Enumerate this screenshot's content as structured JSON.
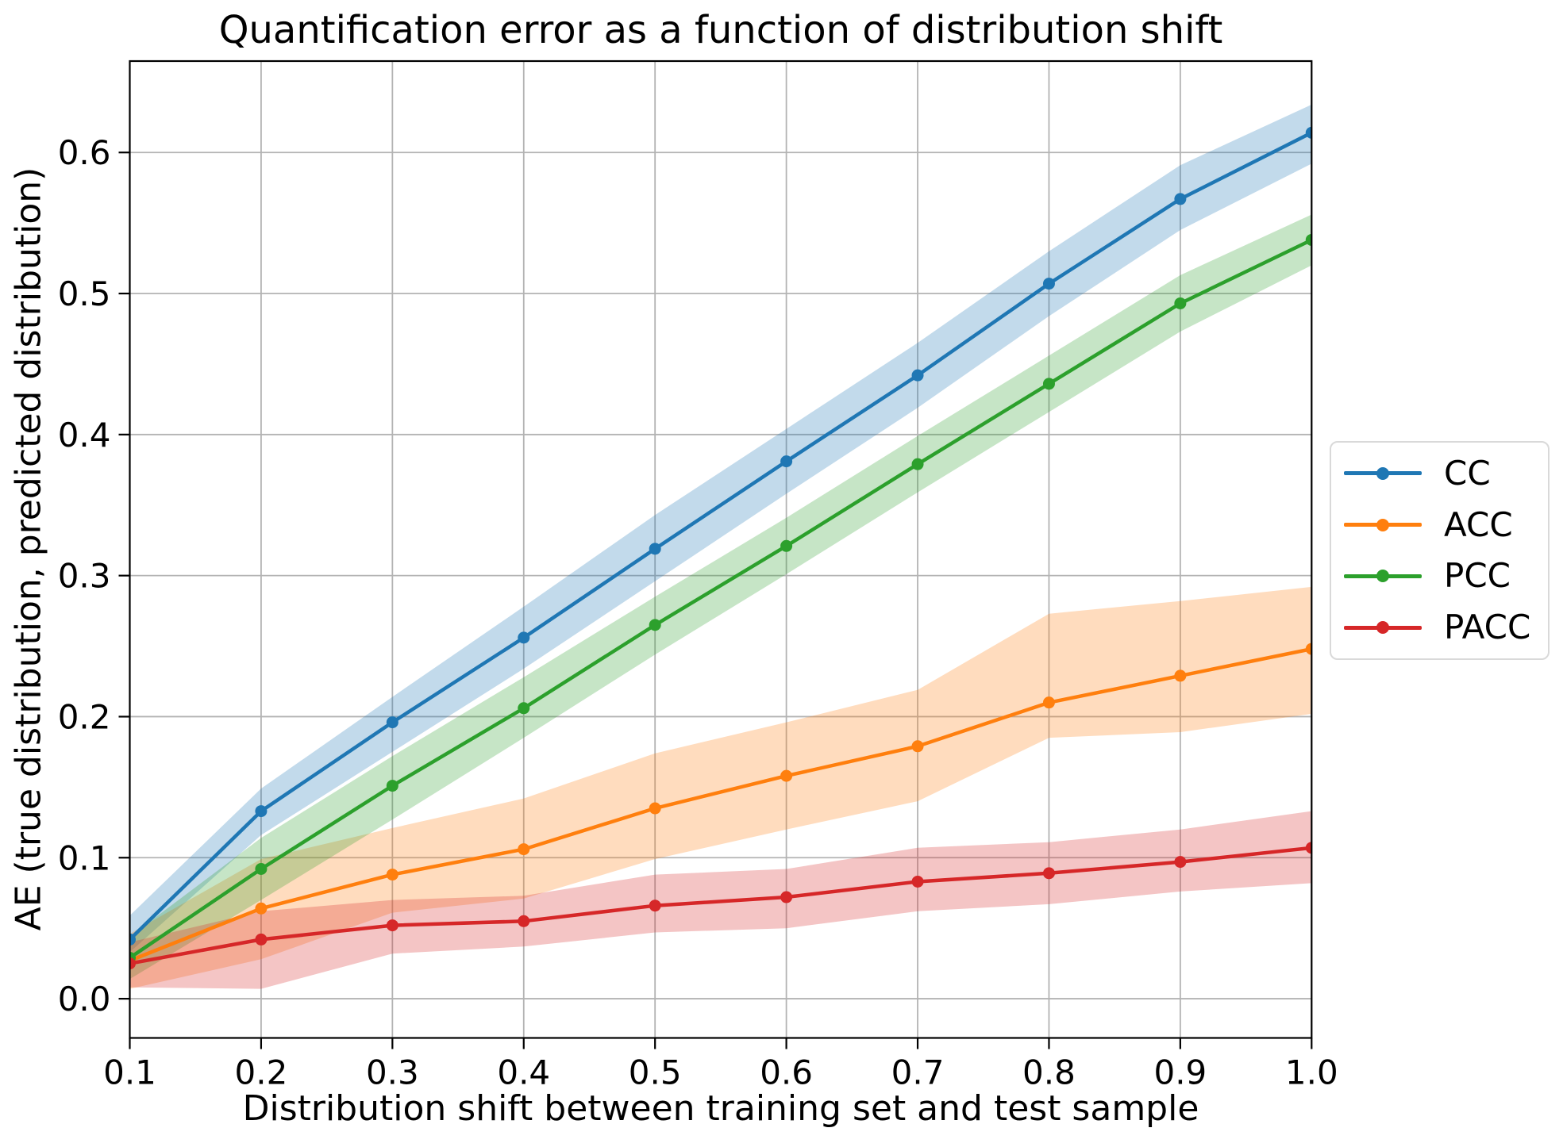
{
  "chart_data": {
    "type": "line",
    "title": "Quantification error as a function of distribution shift",
    "xlabel": "Distribution shift between training set and test sample",
    "ylabel": "AE (true distribution, predicted distribution)",
    "x": [
      0.1,
      0.2,
      0.3,
      0.4,
      0.5,
      0.6,
      0.7,
      0.8,
      0.9,
      1.0
    ],
    "xtick_labels": [
      "0.1",
      "0.2",
      "0.3",
      "0.4",
      "0.5",
      "0.6",
      "0.7",
      "0.8",
      "0.9",
      "1.0"
    ],
    "ytick_labels": [
      "0.0",
      "0.1",
      "0.2",
      "0.3",
      "0.4",
      "0.5",
      "0.6"
    ],
    "xlim": [
      0.1,
      1.0
    ],
    "ylim": [
      -0.0278,
      0.6648
    ],
    "grid": true,
    "grid_color": "#b3b3b3",
    "band_alpha": 0.27,
    "legend_position": "right of axes, vertically centered",
    "series": [
      {
        "name": "CC",
        "color": "#1f77b4",
        "values": [
          0.042,
          0.133,
          0.196,
          0.256,
          0.319,
          0.381,
          0.442,
          0.507,
          0.567,
          0.614
        ],
        "band_lower": [
          0.033,
          0.116,
          0.175,
          0.234,
          0.296,
          0.358,
          0.419,
          0.484,
          0.545,
          0.592
        ],
        "band_upper": [
          0.059,
          0.149,
          0.214,
          0.278,
          0.343,
          0.404,
          0.465,
          0.53,
          0.591,
          0.634
        ]
      },
      {
        "name": "ACC",
        "color": "#ff7f0e",
        "values": [
          0.027,
          0.064,
          0.088,
          0.106,
          0.135,
          0.158,
          0.179,
          0.21,
          0.229,
          0.248
        ],
        "band_lower": [
          0.007,
          0.028,
          0.061,
          0.071,
          0.099,
          0.12,
          0.14,
          0.185,
          0.189,
          0.202
        ],
        "band_upper": [
          0.046,
          0.099,
          0.121,
          0.142,
          0.174,
          0.196,
          0.219,
          0.273,
          0.282,
          0.292
        ]
      },
      {
        "name": "PCC",
        "color": "#2ca02c",
        "values": [
          0.029,
          0.092,
          0.151,
          0.206,
          0.265,
          0.321,
          0.379,
          0.436,
          0.493,
          0.538
        ],
        "band_lower": [
          0.014,
          0.07,
          0.127,
          0.185,
          0.244,
          0.301,
          0.359,
          0.416,
          0.473,
          0.52
        ],
        "band_upper": [
          0.044,
          0.114,
          0.172,
          0.228,
          0.285,
          0.341,
          0.399,
          0.456,
          0.513,
          0.556
        ]
      },
      {
        "name": "PACC",
        "color": "#d62728",
        "values": [
          0.025,
          0.042,
          0.052,
          0.055,
          0.066,
          0.072,
          0.083,
          0.089,
          0.097,
          0.107
        ],
        "band_lower": [
          0.008,
          0.007,
          0.032,
          0.037,
          0.047,
          0.05,
          0.062,
          0.067,
          0.076,
          0.082
        ],
        "band_upper": [
          0.04,
          0.062,
          0.07,
          0.073,
          0.088,
          0.092,
          0.107,
          0.111,
          0.12,
          0.133
        ]
      }
    ]
  },
  "legend": {
    "items": [
      {
        "label": "CC"
      },
      {
        "label": "ACC"
      },
      {
        "label": "PCC"
      },
      {
        "label": "PACC"
      }
    ]
  }
}
